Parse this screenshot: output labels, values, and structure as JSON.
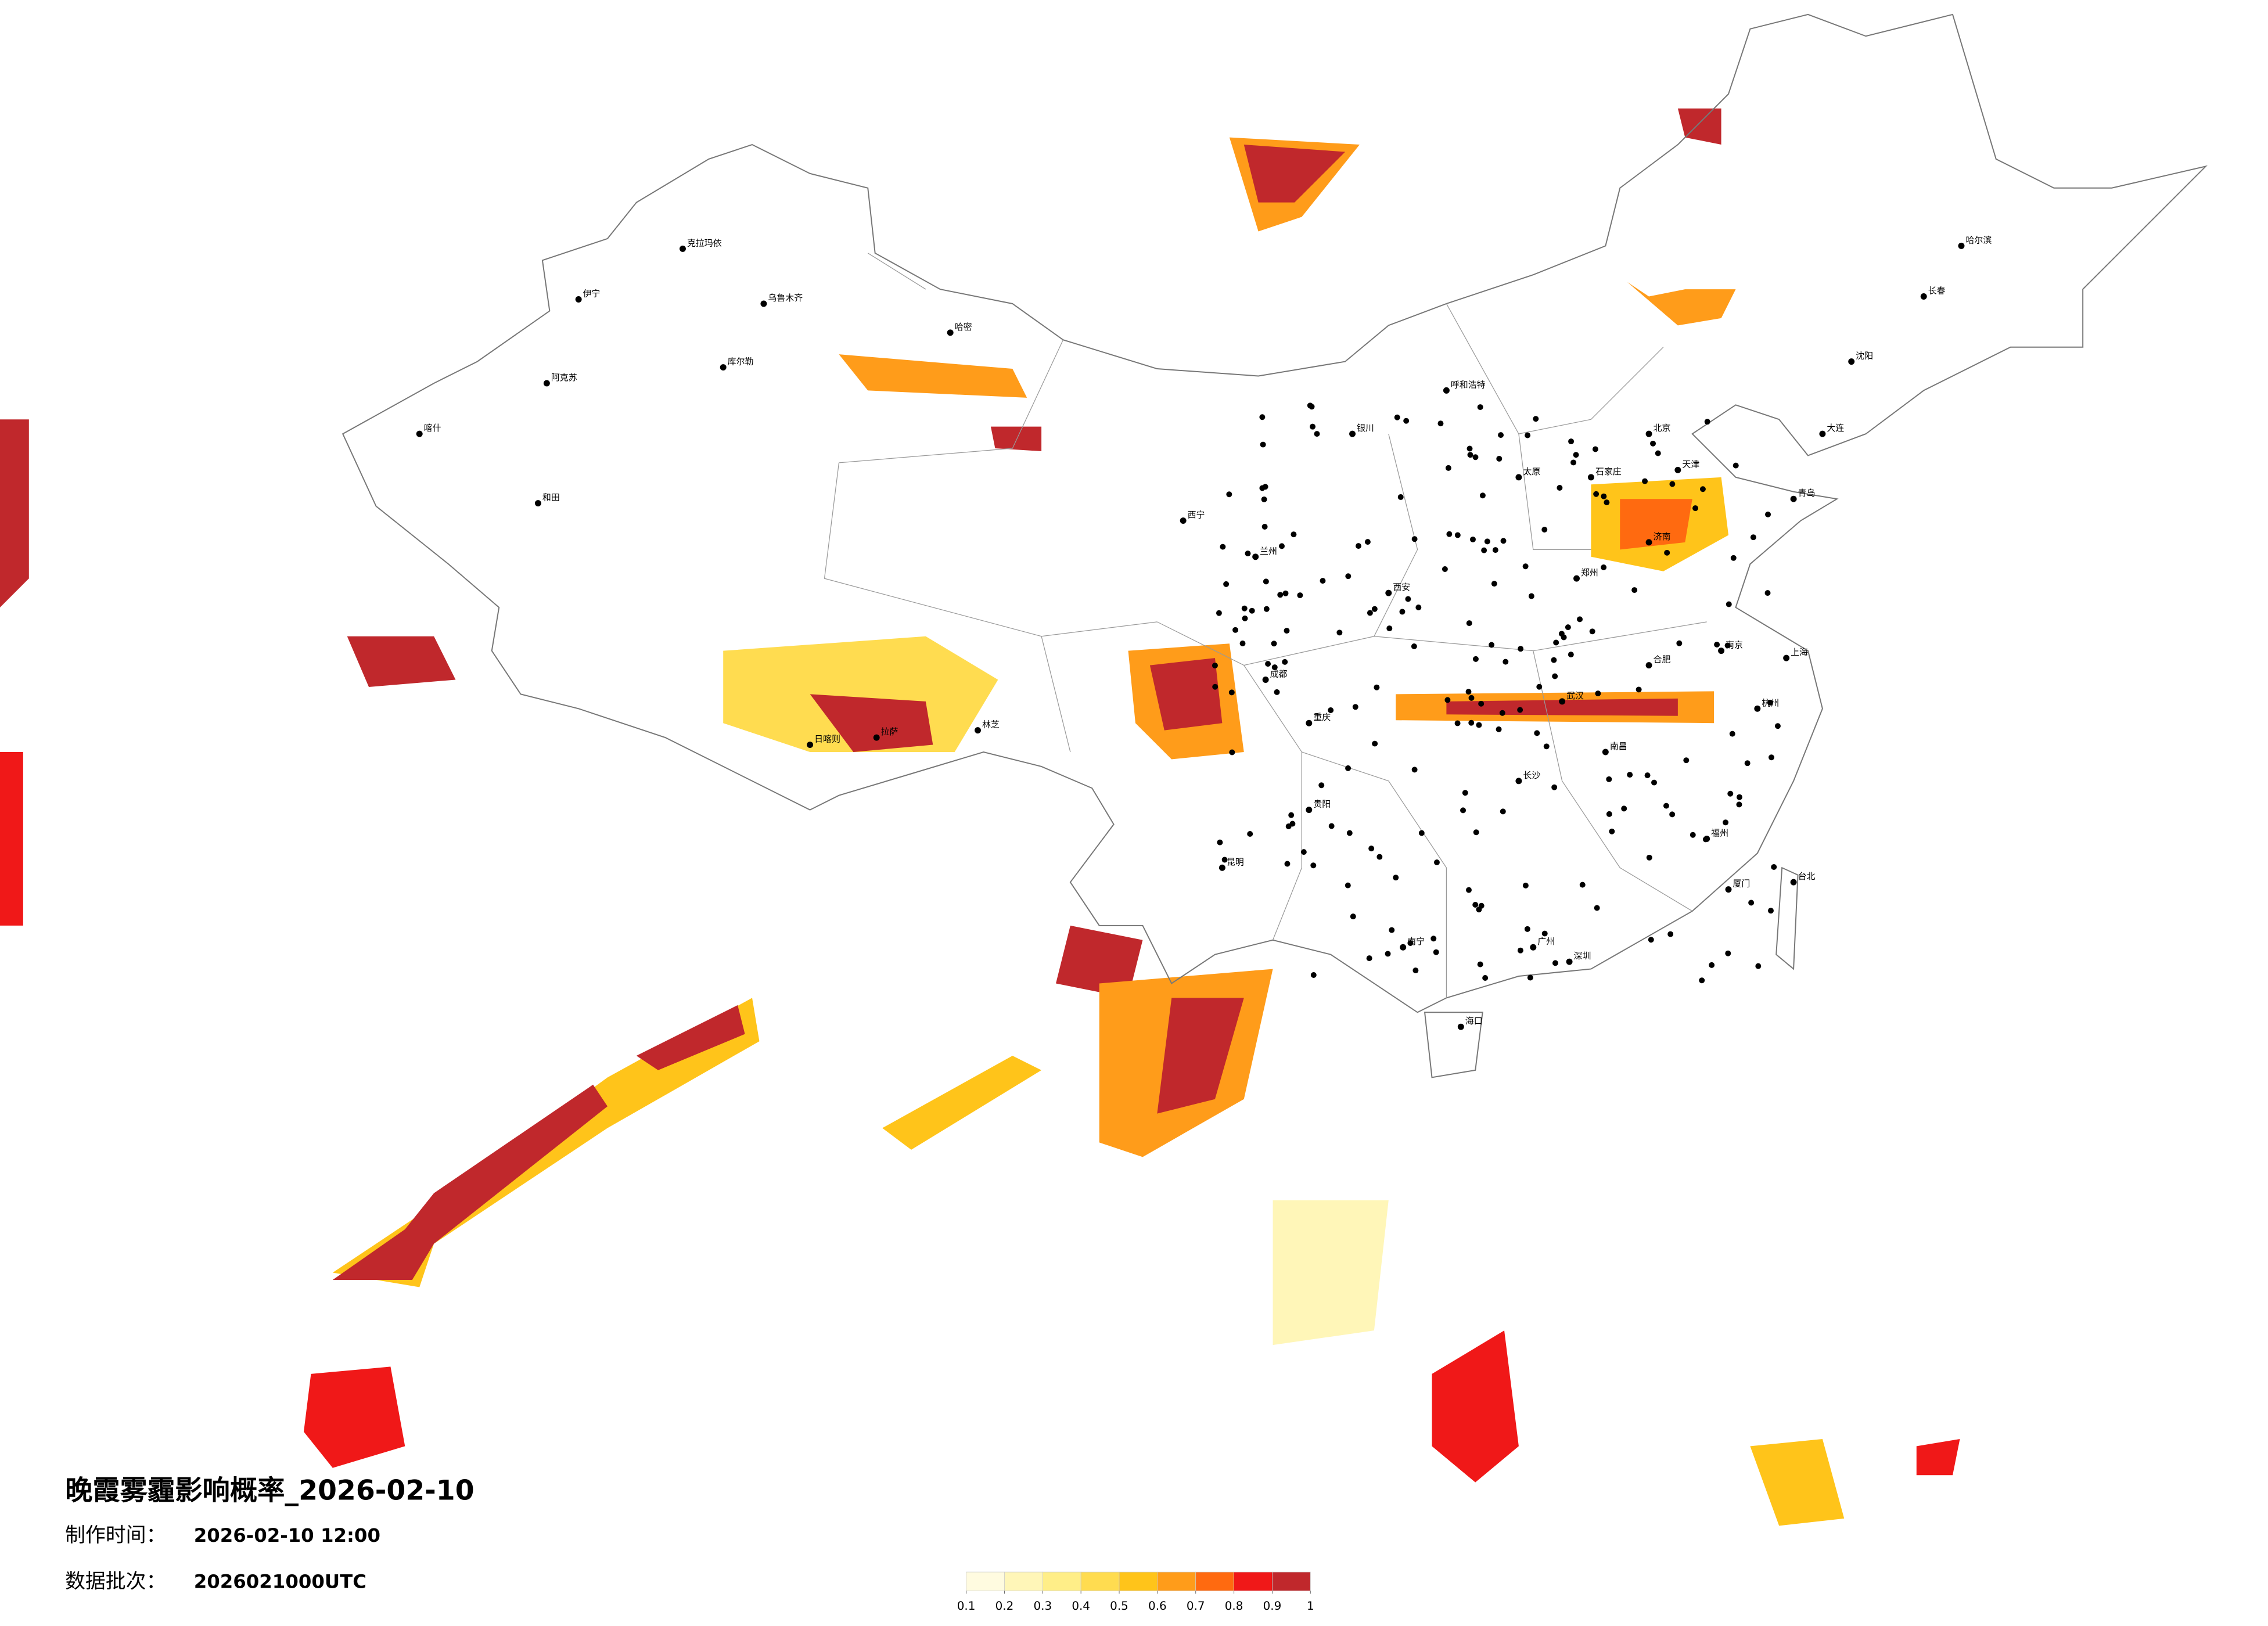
{
  "header": {
    "title": "晚霞雾霾影响概率_2026-02-10",
    "made_label": "制作时间：",
    "made_value": "2026-02-10 12:00",
    "batch_label": "数据批次：",
    "batch_value": "2026021000UTC"
  },
  "colorbar": {
    "ticks": [
      0.1,
      0.2,
      0.3,
      0.4,
      0.5,
      0.6,
      0.7,
      0.8,
      0.9,
      1
    ],
    "colors": [
      "#fffbe0",
      "#fff6b8",
      "#ffee88",
      "#ffdc50",
      "#ffc41a",
      "#ff9c1a",
      "#ff6a10",
      "#f01818",
      "#c0282c"
    ]
  },
  "cities": [
    "乌鲁木齐",
    "克拉玛依",
    "伊宁",
    "阿克苏",
    "喀什",
    "和田",
    "哈密",
    "库尔勒",
    "拉萨",
    "日喀则",
    "林芝",
    "西宁",
    "兰州",
    "银川",
    "呼和浩特",
    "北京",
    "天津",
    "石家庄",
    "太原",
    "济南",
    "郑州",
    "西安",
    "成都",
    "重庆",
    "武汉",
    "长沙",
    "南昌",
    "合肥",
    "南京",
    "上海",
    "杭州",
    "福州",
    "广州",
    "南宁",
    "贵阳",
    "昆明",
    "海口",
    "哈尔滨",
    "长春",
    "沈阳",
    "大连",
    "青岛",
    "台北",
    "厦门",
    "深圳"
  ]
}
